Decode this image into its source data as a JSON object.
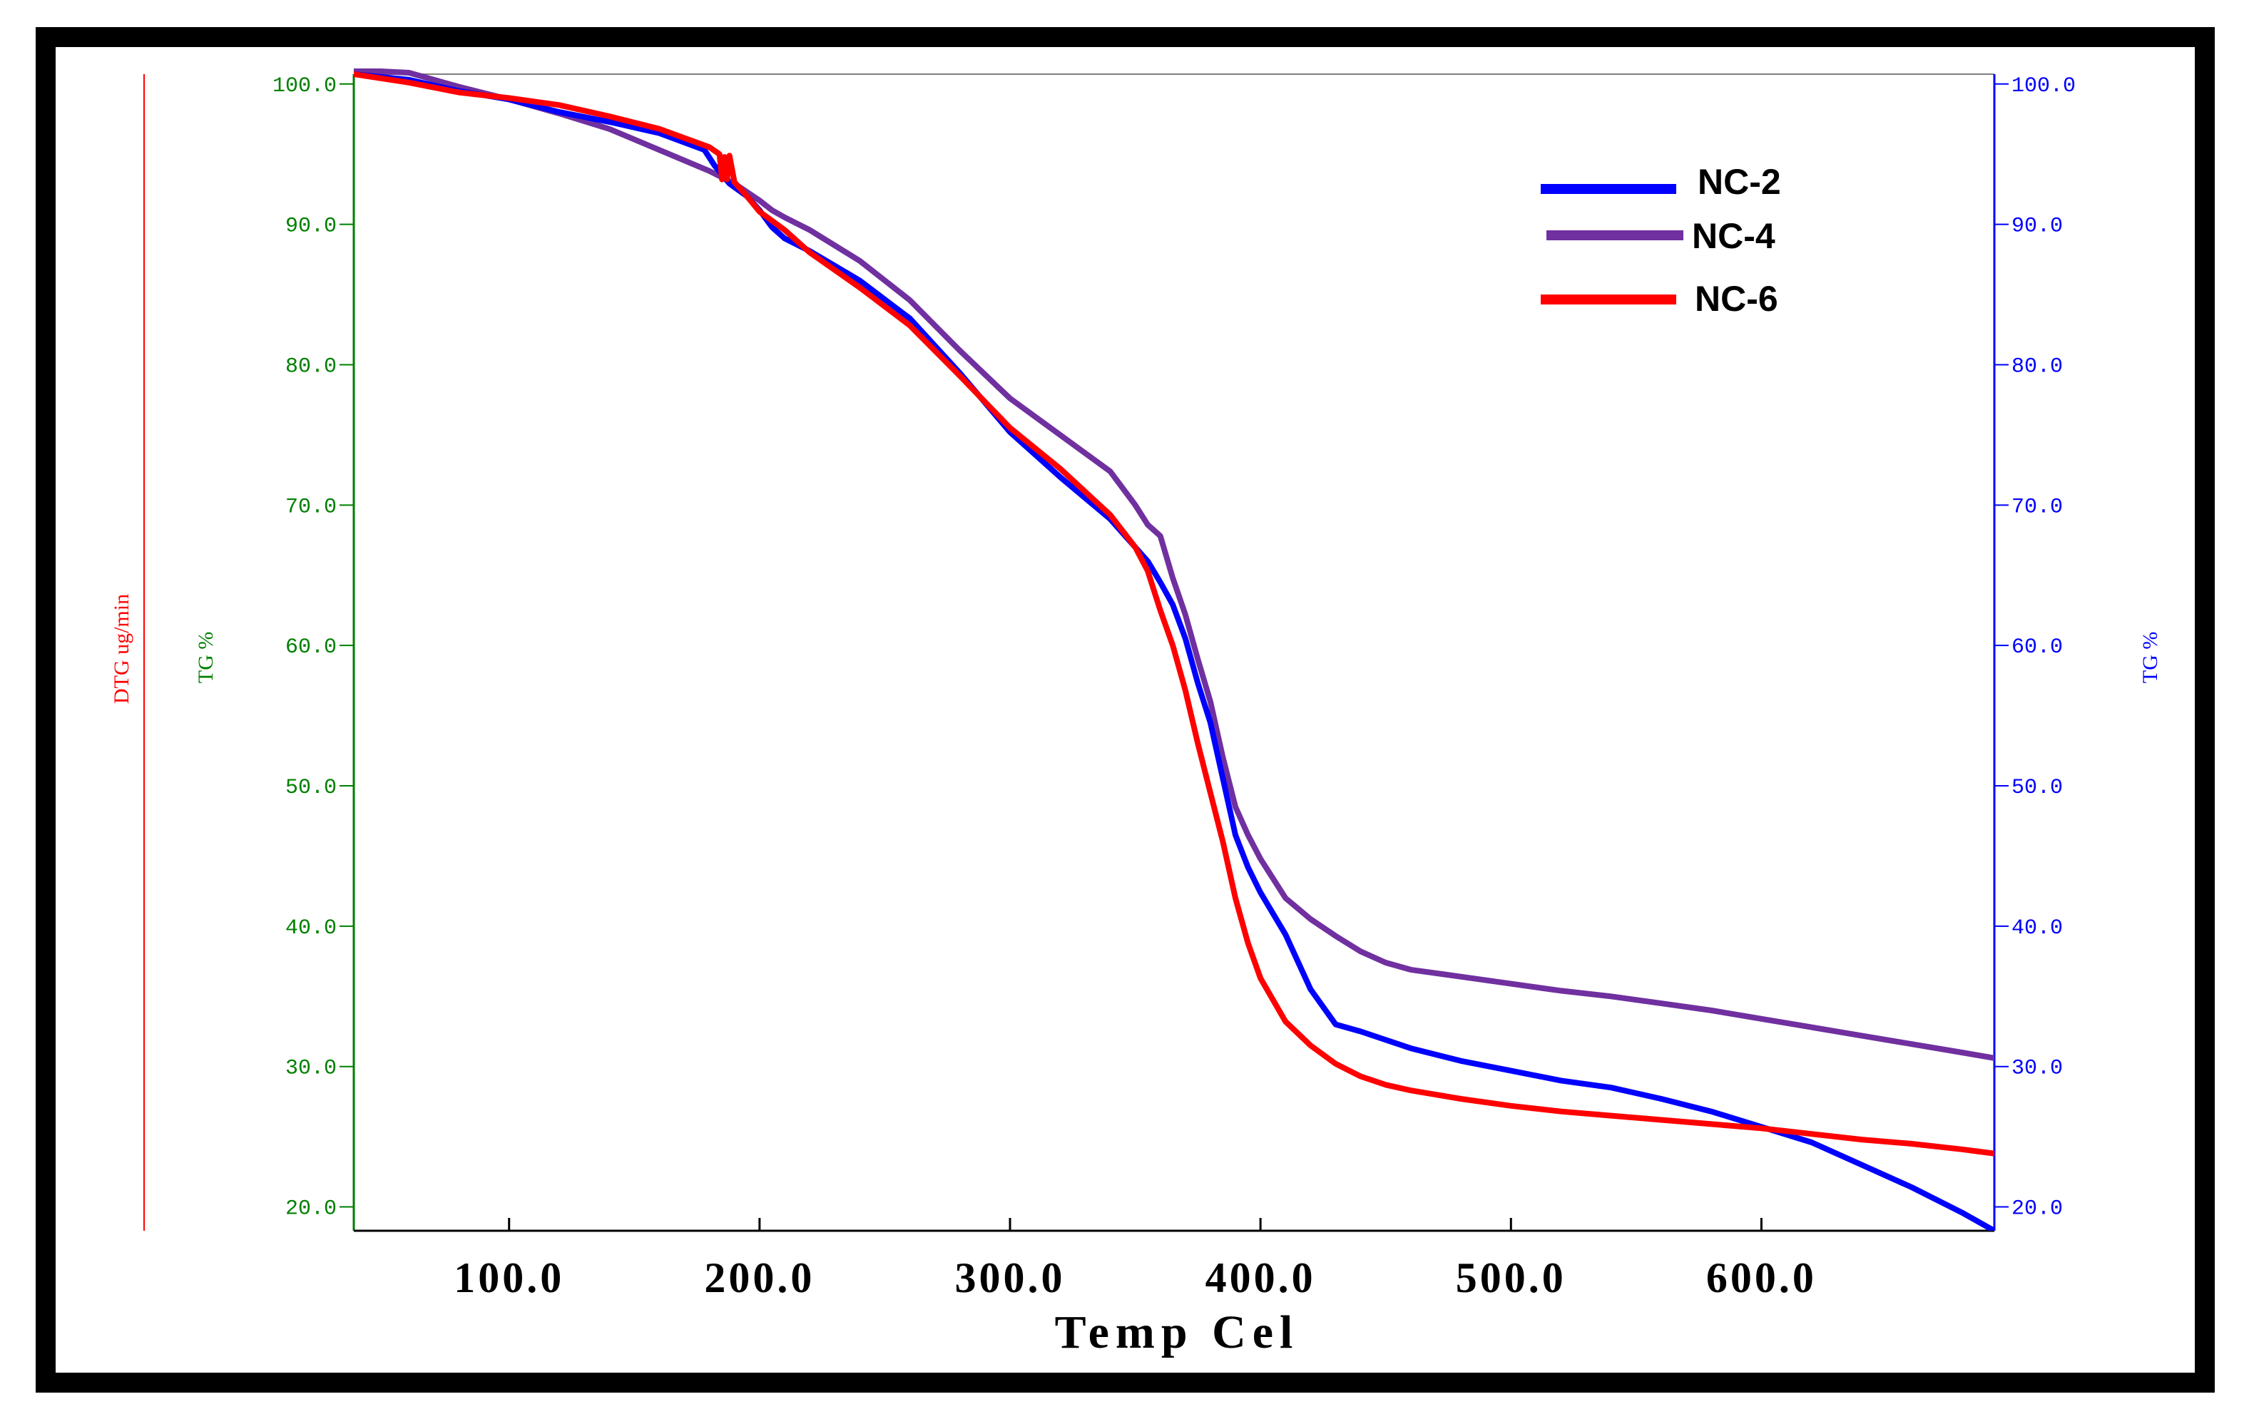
{
  "chart_data": {
    "type": "line",
    "title": "",
    "xlabel": "Temp Cel",
    "x_ticks": [
      "100.0",
      "200.0",
      "300.0",
      "400.0",
      "500.0",
      "600.0"
    ],
    "xlim": [
      38,
      693
    ],
    "left_axis_outer_label": "DTG ug/min",
    "left_axis_label": "TG %",
    "right_axis_label": "TG %",
    "y_ticks": [
      "20.0",
      "30.0",
      "40.0",
      "50.0",
      "60.0",
      "70.0",
      "80.0",
      "90.0",
      "100.0"
    ],
    "ylim": [
      18.3,
      100.7
    ],
    "colors": {
      "left_outer_axis": "#ff0000",
      "left_axis": "#008000",
      "right_axis": "#0000ff"
    },
    "series": [
      {
        "name": "NC-2",
        "color": "#0000ff",
        "x": [
          38,
          60,
          80,
          100,
          120,
          140,
          160,
          178,
          182,
          188,
          195,
          200,
          205,
          210,
          220,
          240,
          260,
          280,
          300,
          320,
          340,
          355,
          360,
          365,
          370,
          375,
          380,
          385,
          390,
          395,
          400,
          410,
          420,
          430,
          440,
          460,
          480,
          500,
          520,
          540,
          560,
          580,
          600,
          620,
          640,
          660,
          680,
          693
        ],
        "y": [
          100.7,
          100.3,
          99.5,
          98.9,
          98.0,
          97.3,
          96.5,
          95.3,
          94.2,
          92.9,
          92.0,
          91.0,
          89.8,
          89.0,
          88.1,
          86.0,
          83.3,
          79.4,
          75.2,
          72.0,
          69.0,
          66.0,
          64.5,
          62.9,
          60.5,
          57.3,
          54.5,
          50.5,
          46.5,
          44.2,
          42.4,
          39.4,
          35.5,
          33.0,
          32.5,
          31.3,
          30.4,
          29.7,
          29.0,
          28.5,
          27.7,
          26.8,
          25.7,
          24.6,
          23.0,
          21.4,
          19.6,
          18.3
        ]
      },
      {
        "name": "NC-4",
        "color": "#7030a0",
        "x": [
          38,
          60,
          80,
          100,
          120,
          140,
          160,
          180,
          190,
          200,
          205,
          210,
          220,
          240,
          260,
          280,
          300,
          320,
          340,
          350,
          355,
          360,
          365,
          370,
          375,
          380,
          385,
          390,
          395,
          400,
          410,
          420,
          430,
          440,
          450,
          460,
          480,
          500,
          520,
          540,
          560,
          580,
          600,
          620,
          640,
          660,
          680,
          693
        ],
        "y": [
          101.0,
          100.8,
          99.8,
          98.9,
          97.9,
          96.8,
          95.3,
          93.8,
          92.9,
          91.7,
          91.0,
          90.5,
          89.6,
          87.4,
          84.6,
          81.0,
          77.6,
          75.0,
          72.4,
          70.0,
          68.6,
          67.8,
          64.8,
          62.2,
          59.0,
          56.0,
          52.0,
          48.5,
          46.5,
          44.8,
          42.0,
          40.5,
          39.3,
          38.2,
          37.4,
          36.9,
          36.4,
          35.9,
          35.4,
          35.0,
          34.5,
          34.0,
          33.4,
          32.8,
          32.2,
          31.6,
          31.0,
          30.6
        ]
      },
      {
        "name": "NC-6",
        "color": "#ff0000",
        "x": [
          38,
          60,
          80,
          100,
          120,
          140,
          160,
          180,
          184,
          185,
          186,
          187,
          188,
          190,
          195,
          200,
          210,
          220,
          240,
          260,
          280,
          300,
          320,
          340,
          350,
          355,
          360,
          365,
          370,
          375,
          380,
          385,
          390,
          395,
          400,
          410,
          420,
          430,
          440,
          450,
          460,
          480,
          500,
          520,
          540,
          560,
          580,
          600,
          620,
          640,
          660,
          680,
          693
        ],
        "y": [
          100.7,
          100.1,
          99.4,
          99.0,
          98.5,
          97.7,
          96.8,
          95.5,
          95.0,
          93.2,
          94.8,
          93.2,
          94.9,
          93.0,
          92.0,
          90.9,
          89.6,
          88.0,
          85.5,
          82.8,
          79.2,
          75.5,
          72.6,
          69.3,
          67.0,
          65.3,
          62.5,
          60.0,
          56.8,
          53.0,
          49.5,
          46.0,
          42.0,
          38.8,
          36.3,
          33.2,
          31.5,
          30.2,
          29.3,
          28.7,
          28.3,
          27.7,
          27.2,
          26.8,
          26.5,
          26.2,
          25.9,
          25.6,
          25.2,
          24.8,
          24.5,
          24.1,
          23.8
        ]
      }
    ],
    "legend_position": "top-right"
  }
}
